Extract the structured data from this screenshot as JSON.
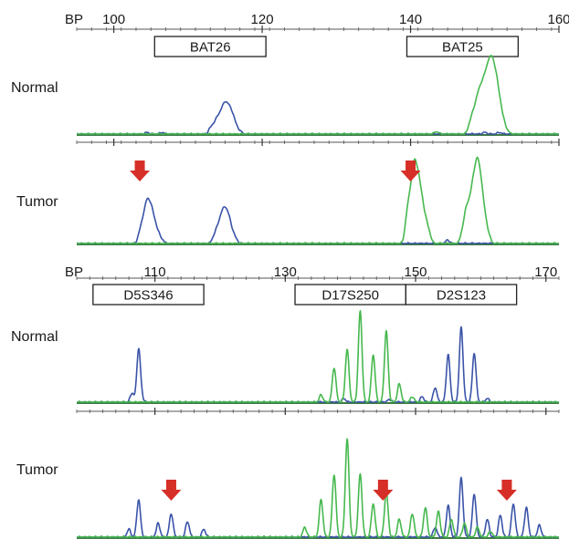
{
  "colors": {
    "blue": "#3a53a8",
    "green": "#46b84e",
    "arrow": "#d62f27",
    "axis": "#555555",
    "baseline": "#3d7a44"
  },
  "chart_data": [
    {
      "type": "line",
      "title": "",
      "axis_label": "BP",
      "xlim": [
        95,
        160
      ],
      "ticks": [
        100,
        120,
        140,
        160
      ],
      "markers": [
        {
          "label": "BAT26",
          "from": 105.5,
          "to": 120.5
        },
        {
          "label": "BAT25",
          "from": 139.5,
          "to": 154.5
        }
      ],
      "rows": [
        {
          "label": "Normal",
          "series": [
            {
              "color": "blue",
              "peaks": [
                [
                  104.5,
                  0.02
                ],
                [
                  106.5,
                  0.02
                ],
                [
                  113,
                  0.06
                ],
                [
                  113.5,
                  0.1
                ],
                [
                  114,
                  0.16
                ],
                [
                  114.5,
                  0.22
                ],
                [
                  115,
                  0.3
                ],
                [
                  115.5,
                  0.26
                ],
                [
                  116,
                  0.2
                ],
                [
                  116.5,
                  0.08
                ],
                [
                  117,
                  0.03
                ],
                [
                  150,
                  0.02
                ],
                [
                  152,
                  0.02
                ]
              ]
            },
            {
              "color": "green",
              "peaks": [
                [
                  143.5,
                  0.03
                ],
                [
                  148,
                  0.12
                ],
                [
                  148.5,
                  0.22
                ],
                [
                  149,
                  0.35
                ],
                [
                  149.5,
                  0.45
                ],
                [
                  150,
                  0.52
                ],
                [
                  150.5,
                  0.66
                ],
                [
                  151,
                  0.7
                ],
                [
                  151.5,
                  0.56
                ],
                [
                  152,
                  0.34
                ],
                [
                  152.5,
                  0.14
                ],
                [
                  153,
                  0.04
                ]
              ]
            }
          ]
        },
        {
          "label": "Tumor",
          "arrows": [
            103.5,
            140
          ],
          "series": [
            {
              "color": "blue",
              "peaks": [
                [
                  103.5,
                  0.12
                ],
                [
                  104,
                  0.26
                ],
                [
                  104.5,
                  0.42
                ],
                [
                  105,
                  0.36
                ],
                [
                  105.5,
                  0.22
                ],
                [
                  106,
                  0.1
                ],
                [
                  106.5,
                  0.04
                ],
                [
                  113.5,
                  0.08
                ],
                [
                  114,
                  0.16
                ],
                [
                  114.5,
                  0.28
                ],
                [
                  115,
                  0.34
                ],
                [
                  115.5,
                  0.26
                ],
                [
                  116,
                  0.12
                ],
                [
                  116.5,
                  0.04
                ],
                [
                  145,
                  0.04
                ]
              ]
            },
            {
              "color": "green",
              "peaks": [
                [
                  139.5,
                  0.3
                ],
                [
                  140,
                  0.5
                ],
                [
                  140.5,
                  0.78
                ],
                [
                  141,
                  0.66
                ],
                [
                  141.5,
                  0.44
                ],
                [
                  142,
                  0.24
                ],
                [
                  142.5,
                  0.12
                ],
                [
                  147,
                  0.14
                ],
                [
                  147.5,
                  0.34
                ],
                [
                  148,
                  0.4
                ],
                [
                  148.5,
                  0.62
                ],
                [
                  149,
                  0.8
                ],
                [
                  149.5,
                  0.6
                ],
                [
                  150,
                  0.28
                ],
                [
                  150.5,
                  0.1
                ]
              ]
            }
          ]
        }
      ]
    },
    {
      "type": "line",
      "title": "",
      "axis_label": "BP",
      "xlim": [
        98,
        172
      ],
      "ticks": [
        110,
        130,
        150,
        170
      ],
      "markers": [
        {
          "label": "D5S346",
          "from": 100.5,
          "to": 117.5
        },
        {
          "label": "D17S250",
          "from": 131.5,
          "to": 148.5
        },
        {
          "label": "D2S123",
          "from": 148.5,
          "to": 165.5
        }
      ],
      "rows": [
        {
          "label": "Normal",
          "series": [
            {
              "color": "blue",
              "peaks": [
                [
                  106.5,
                  0.1
                ],
                [
                  107.5,
                  0.58
                ],
                [
                  108,
                  0.04
                ],
                [
                  139,
                  0.04
                ],
                [
                  146,
                  0.03
                ],
                [
                  151,
                  0.06
                ],
                [
                  153,
                  0.16
                ],
                [
                  155,
                  0.52
                ],
                [
                  157,
                  0.82
                ],
                [
                  159,
                  0.54
                ],
                [
                  161,
                  0.04
                ]
              ]
            },
            {
              "color": "green",
              "peaks": [
                [
                  135.5,
                  0.08
                ],
                [
                  137.5,
                  0.38
                ],
                [
                  139.5,
                  0.58
                ],
                [
                  141.5,
                  1.0
                ],
                [
                  143.5,
                  0.52
                ],
                [
                  145.5,
                  0.78
                ],
                [
                  147.5,
                  0.2
                ],
                [
                  149.5,
                  0.06
                ]
              ]
            }
          ]
        },
        {
          "label": "Tumor",
          "arrows": [
            112.5,
            145,
            164
          ],
          "series": [
            {
              "color": "blue",
              "peaks": [
                [
                  106,
                  0.08
                ],
                [
                  107.5,
                  0.38
                ],
                [
                  110.5,
                  0.14
                ],
                [
                  112.5,
                  0.24
                ],
                [
                  115,
                  0.16
                ],
                [
                  117.5,
                  0.08
                ],
                [
                  153,
                  0.1
                ],
                [
                  155,
                  0.32
                ],
                [
                  157,
                  0.6
                ],
                [
                  159,
                  0.44
                ],
                [
                  161,
                  0.18
                ],
                [
                  163,
                  0.22
                ],
                [
                  165,
                  0.34
                ],
                [
                  167,
                  0.3
                ],
                [
                  169,
                  0.12
                ]
              ]
            },
            {
              "color": "green",
              "peaks": [
                [
                  133,
                  0.1
                ],
                [
                  135.5,
                  0.38
                ],
                [
                  137.5,
                  0.64
                ],
                [
                  139.5,
                  1.0
                ],
                [
                  141.5,
                  0.64
                ],
                [
                  143.5,
                  0.34
                ],
                [
                  145.5,
                  0.46
                ],
                [
                  147.5,
                  0.18
                ],
                [
                  149.5,
                  0.24
                ],
                [
                  151.5,
                  0.3
                ],
                [
                  153.5,
                  0.26
                ],
                [
                  155.5,
                  0.18
                ],
                [
                  157.5,
                  0.14
                ],
                [
                  159.5,
                  0.1
                ],
                [
                  161.5,
                  0.06
                ]
              ]
            }
          ]
        }
      ]
    }
  ]
}
